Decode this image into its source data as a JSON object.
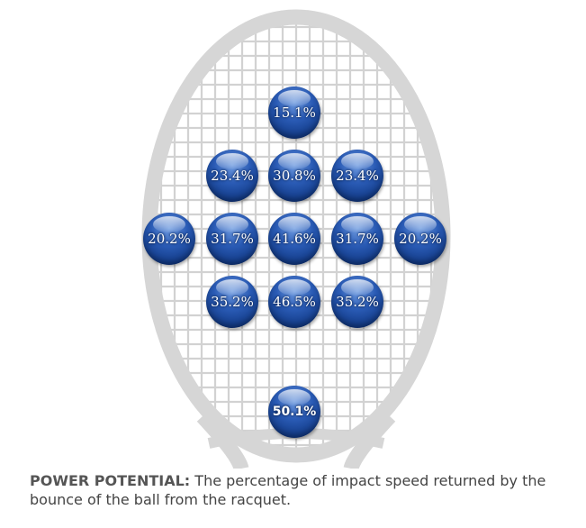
{
  "balls": [
    {
      "label": "15.1%"
    },
    {
      "label": "23.4%"
    },
    {
      "label": "30.8%"
    },
    {
      "label": "23.4%"
    },
    {
      "label": "20.2%"
    },
    {
      "label": "31.7%"
    },
    {
      "label": "41.6%"
    },
    {
      "label": "31.7%"
    },
    {
      "label": "20.2%"
    },
    {
      "label": "35.2%"
    },
    {
      "label": "46.5%"
    },
    {
      "label": "35.2%"
    },
    {
      "label": "50.1%"
    }
  ],
  "caption": {
    "title": "POWER POTENTIAL:",
    "text": " The percentage of impact speed returned by the bounce of the ball from the racquet."
  },
  "colors": {
    "frame": "#d6d6d6",
    "strings": "#d0d0d0",
    "ball": "#1f4f9e",
    "caption_text": "#444444"
  }
}
